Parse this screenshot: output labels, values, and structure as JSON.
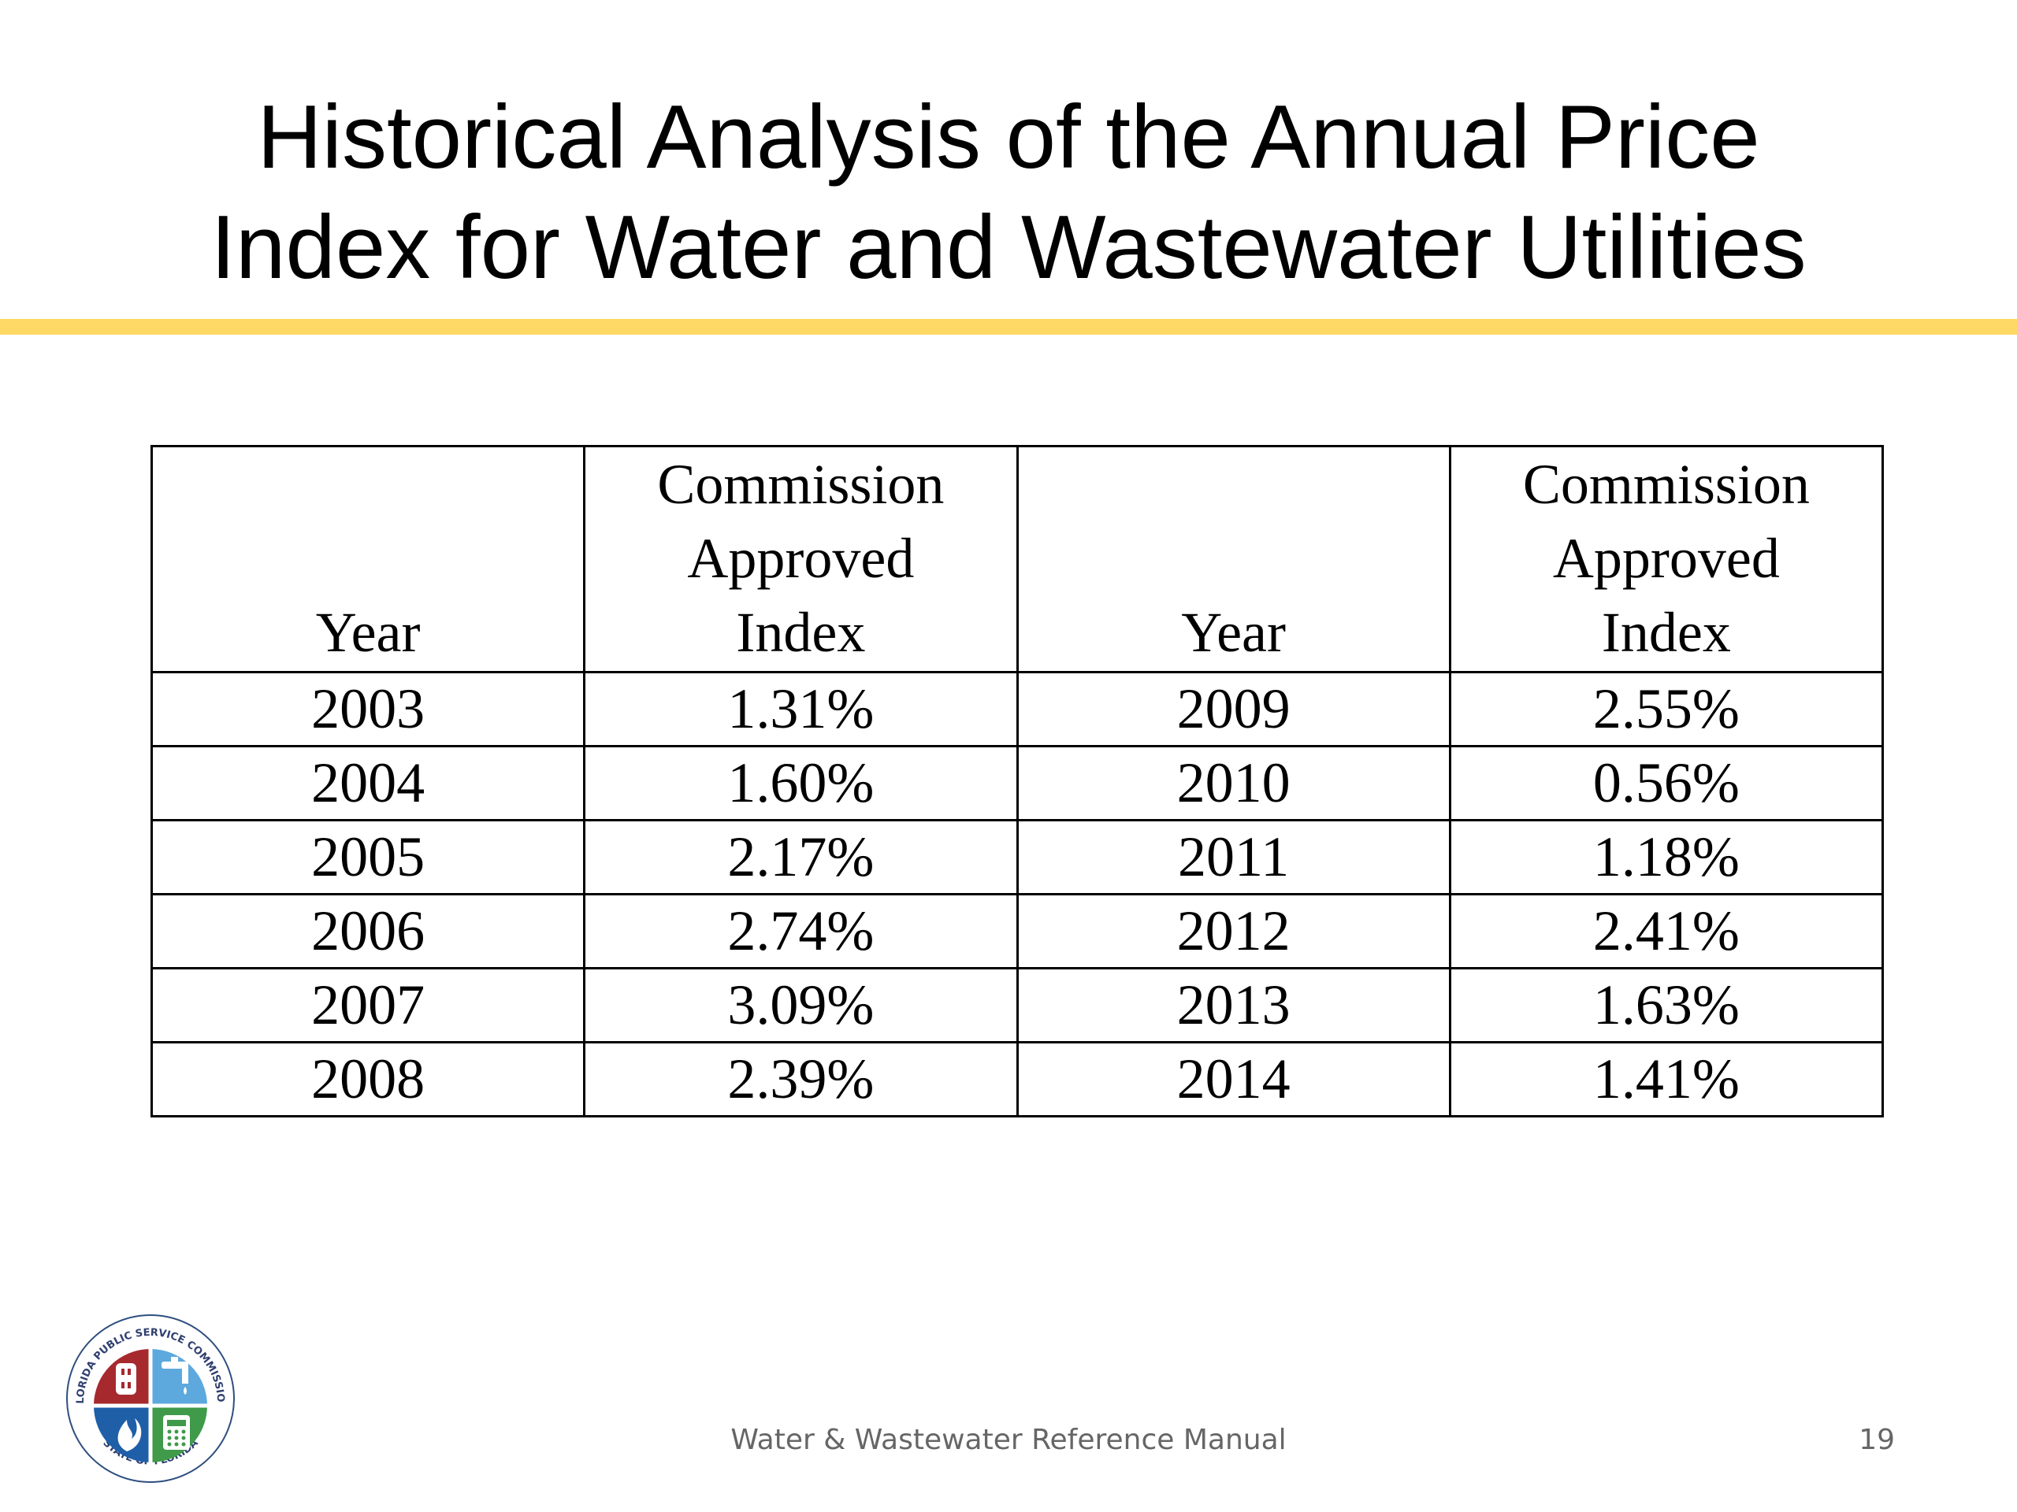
{
  "slide": {
    "title_lines": [
      "Historical Analysis of the Annual Price",
      "Index for Water and Wastewater Utilities"
    ],
    "accent_color": "#FFD966"
  },
  "table": {
    "headers": [
      [
        "Year"
      ],
      [
        "Commission",
        "Approved",
        "Index"
      ],
      [
        "Year"
      ],
      [
        "Commission",
        "Approved",
        "Index"
      ]
    ],
    "rows": [
      [
        "2003",
        "1.31%",
        "2009",
        "2.55%"
      ],
      [
        "2004",
        "1.60%",
        "2010",
        "0.56%"
      ],
      [
        "2005",
        "2.17%",
        "2011",
        "1.18%"
      ],
      [
        "2006",
        "2.74%",
        "2012",
        "2.41%"
      ],
      [
        "2007",
        "3.09%",
        "2013",
        "1.63%"
      ],
      [
        "2008",
        "2.39%",
        "2014",
        "1.41%"
      ]
    ]
  },
  "footer": {
    "text": "Water & Wastewater Reference Manual",
    "page_number": "19"
  },
  "logo": {
    "ring_text_top": "FLORIDA PUBLIC SERVICE COMMISSION",
    "ring_text_bottom": "STATE OF FLORIDA",
    "quadrant_colors": {
      "top_left": "#A6292E",
      "top_right": "#5DA9DD",
      "bottom_left": "#1F5FA8",
      "bottom_right": "#3F9A4A"
    }
  }
}
